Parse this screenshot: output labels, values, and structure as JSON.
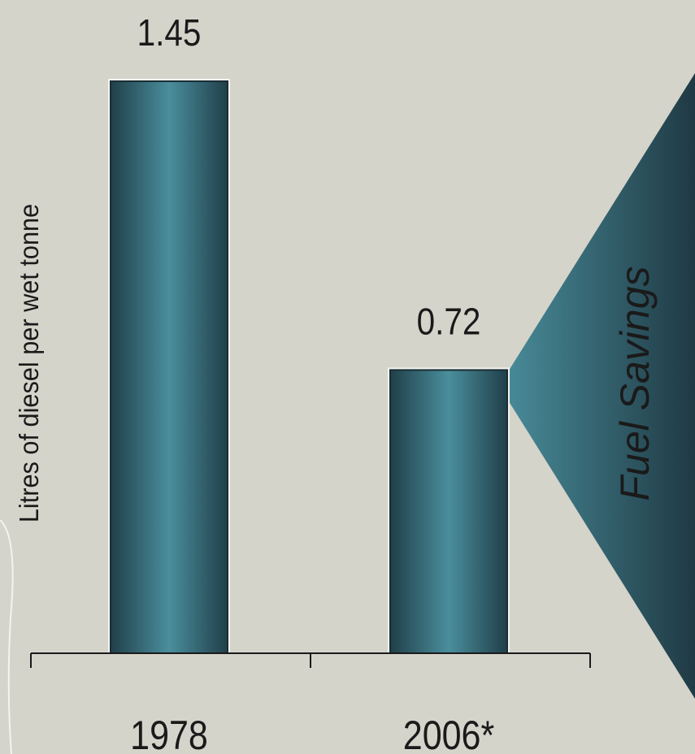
{
  "chart_data": {
    "type": "bar",
    "title": "",
    "xlabel": "",
    "ylabel": "Litres of diesel per wet tonne",
    "categories": [
      "1978",
      "2006*"
    ],
    "values": [
      1.45,
      0.72
    ],
    "data_labels": [
      "1.45",
      "0.72"
    ],
    "ylim": [
      0,
      1.45
    ],
    "grid": false,
    "legend": "none",
    "bar_style": "teal cylindrical gradient"
  },
  "callout": {
    "text": "Fuel Savings",
    "shape": "arrow-triangle pointing left",
    "colors": {
      "light": "#4a8e9c",
      "dark": "#1f3a44"
    }
  },
  "colors": {
    "background": "#d4d4cb",
    "bar_edge": "#1f3d47",
    "bar_center": "#4a8e9c",
    "axis": "#1a1a1a",
    "text": "#1a1a1a"
  }
}
